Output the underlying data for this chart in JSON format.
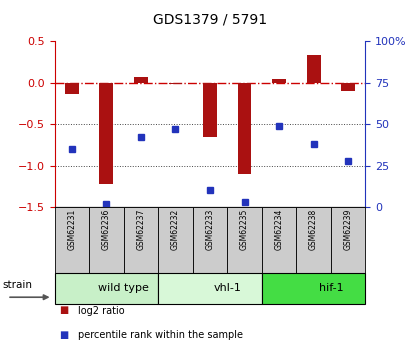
{
  "title": "GDS1379 / 5791",
  "samples": [
    "GSM62231",
    "GSM62236",
    "GSM62237",
    "GSM62232",
    "GSM62233",
    "GSM62235",
    "GSM62234",
    "GSM62238",
    "GSM62239"
  ],
  "log2_ratio": [
    -0.13,
    -1.22,
    0.07,
    -0.01,
    -0.65,
    -1.1,
    0.05,
    0.34,
    -0.1
  ],
  "percentile_rank": [
    35,
    2,
    42,
    47,
    10,
    3,
    49,
    38,
    28
  ],
  "groups": [
    {
      "label": "wild type",
      "start": 0,
      "end": 3,
      "color": "#c8f0c8"
    },
    {
      "label": "vhl-1",
      "start": 3,
      "end": 6,
      "color": "#d8f8d8"
    },
    {
      "label": "hif-1",
      "start": 6,
      "end": 9,
      "color": "#44dd44"
    }
  ],
  "ylim_left": [
    -1.5,
    0.5
  ],
  "ylim_right": [
    0,
    100
  ],
  "bar_color": "#aa1111",
  "dot_color": "#2233bb",
  "hline_color": "#cc0000",
  "dotted_line_color": "#444444",
  "dotted_lines": [
    -0.5,
    -1.0
  ],
  "left_tick_color": "#cc0000",
  "right_tick_color": "#2233bb",
  "bg_color": "#ffffff",
  "legend_items": [
    "log2 ratio",
    "percentile rank within the sample"
  ],
  "legend_colors": [
    "#aa1111",
    "#2233bb"
  ],
  "label_box_color": "#cccccc",
  "group_border_color": "#000000",
  "bar_width": 0.4,
  "figsize": [
    4.2,
    3.45
  ],
  "dpi": 100
}
